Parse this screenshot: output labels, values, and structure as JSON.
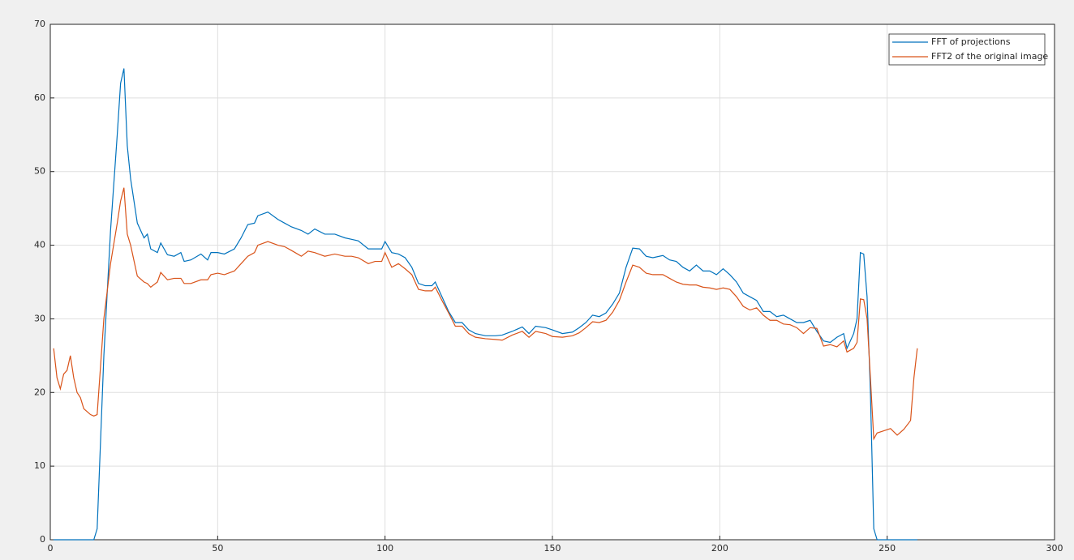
{
  "chart_data": {
    "type": "line",
    "x": [
      1,
      2,
      3,
      4,
      5,
      6,
      7,
      8,
      9,
      10,
      12,
      13,
      14,
      16,
      18,
      20,
      21,
      22,
      23,
      24,
      26,
      28,
      29,
      30,
      32,
      33,
      35,
      37,
      39,
      40,
      42,
      45,
      47,
      48,
      50,
      52,
      55,
      57,
      59,
      61,
      62,
      65,
      68,
      70,
      72,
      75,
      77,
      79,
      82,
      85,
      88,
      90,
      92,
      95,
      97,
      99,
      100,
      102,
      104,
      106,
      108,
      110,
      112,
      114,
      115,
      117,
      119,
      121,
      123,
      125,
      127,
      130,
      133,
      135,
      138,
      141,
      143,
      145,
      148,
      150,
      153,
      156,
      158,
      160,
      162,
      164,
      166,
      168,
      170,
      172,
      174,
      176,
      178,
      180,
      183,
      185,
      187,
      189,
      191,
      193,
      195,
      197,
      199,
      201,
      203,
      205,
      207,
      209,
      211,
      213,
      215,
      217,
      219,
      221,
      223,
      225,
      227,
      229,
      231,
      233,
      235,
      237,
      238,
      240,
      241,
      242,
      243,
      244,
      245,
      246,
      247,
      249,
      251,
      253,
      255,
      257,
      258,
      259
    ],
    "series": [
      {
        "name": "FFT of projections",
        "color": "#0072bd",
        "values": [
          0,
          0,
          0,
          0,
          0,
          0,
          0,
          0,
          0,
          0,
          0,
          0,
          1.5,
          25,
          42,
          55,
          62,
          64,
          53.5,
          49,
          43,
          41,
          41.5,
          39.5,
          39,
          40.3,
          38.7,
          38.5,
          39,
          37.8,
          38,
          38.8,
          38,
          39,
          39,
          38.8,
          39.5,
          41,
          42.8,
          43,
          44,
          44.5,
          43.5,
          43,
          42.5,
          42,
          41.5,
          42.2,
          41.5,
          41.5,
          41,
          40.8,
          40.6,
          39.5,
          39.5,
          39.5,
          40.5,
          39,
          38.8,
          38.3,
          37,
          34.8,
          34.5,
          34.5,
          35,
          33,
          31,
          29.5,
          29.5,
          28.5,
          28,
          27.7,
          27.7,
          27.8,
          28.3,
          28.9,
          28,
          29,
          28.8,
          28.5,
          28,
          28.2,
          28.8,
          29.5,
          30.5,
          30.3,
          30.8,
          32,
          33.5,
          37,
          39.6,
          39.5,
          38.5,
          38.3,
          38.6,
          38,
          37.8,
          37,
          36.5,
          37.3,
          36.5,
          36.5,
          36,
          36.8,
          36,
          35,
          33.5,
          33,
          32.5,
          31,
          31,
          30.3,
          30.5,
          30,
          29.5,
          29.5,
          29.8,
          28.3,
          27,
          26.8,
          27.5,
          28,
          26,
          28,
          30,
          39,
          38.8,
          33,
          20,
          1.5,
          0,
          0,
          0,
          0,
          0,
          0,
          0,
          0
        ]
      },
      {
        "name": "FFT2 of the original image",
        "color": "#d95319",
        "values": [
          26,
          22,
          20.5,
          22.5,
          23,
          25,
          22,
          20,
          19.3,
          17.8,
          17,
          16.8,
          17,
          30,
          37.5,
          43,
          46,
          47.8,
          41.5,
          40,
          35.8,
          35,
          34.8,
          34.3,
          35,
          36.3,
          35.3,
          35.5,
          35.5,
          34.8,
          34.8,
          35.3,
          35.3,
          36,
          36.2,
          36,
          36.5,
          37.5,
          38.5,
          39,
          40,
          40.5,
          40,
          39.8,
          39.3,
          38.5,
          39.2,
          39,
          38.5,
          38.8,
          38.5,
          38.5,
          38.3,
          37.5,
          37.8,
          37.8,
          39,
          37,
          37.5,
          36.8,
          36,
          34,
          33.8,
          33.8,
          34.3,
          32.5,
          30.8,
          29,
          29,
          28,
          27.5,
          27.3,
          27.2,
          27.1,
          27.8,
          28.3,
          27.5,
          28.3,
          28,
          27.6,
          27.5,
          27.7,
          28.1,
          28.8,
          29.6,
          29.5,
          29.8,
          30.9,
          32.5,
          35,
          37.3,
          37,
          36.2,
          36,
          36,
          35.5,
          35,
          34.7,
          34.6,
          34.6,
          34.3,
          34.2,
          34,
          34.2,
          34,
          33,
          31.7,
          31.2,
          31.5,
          30.5,
          29.8,
          29.8,
          29.3,
          29.2,
          28.8,
          28,
          28.8,
          28.7,
          26.3,
          26.5,
          26.2,
          27,
          25.5,
          26,
          26.8,
          32.7,
          32.6,
          30,
          22,
          13.7,
          14.5,
          14.8,
          15.1,
          14.2,
          15,
          16.2,
          22,
          26
        ]
      }
    ],
    "xlim": [
      0,
      300
    ],
    "xticks": [
      0,
      50,
      100,
      150,
      200,
      250,
      300
    ],
    "ylim": [
      0,
      70
    ],
    "yticks": [
      0,
      10,
      20,
      30,
      40,
      50,
      60,
      70
    ],
    "grid": true,
    "legend": "northeast"
  }
}
